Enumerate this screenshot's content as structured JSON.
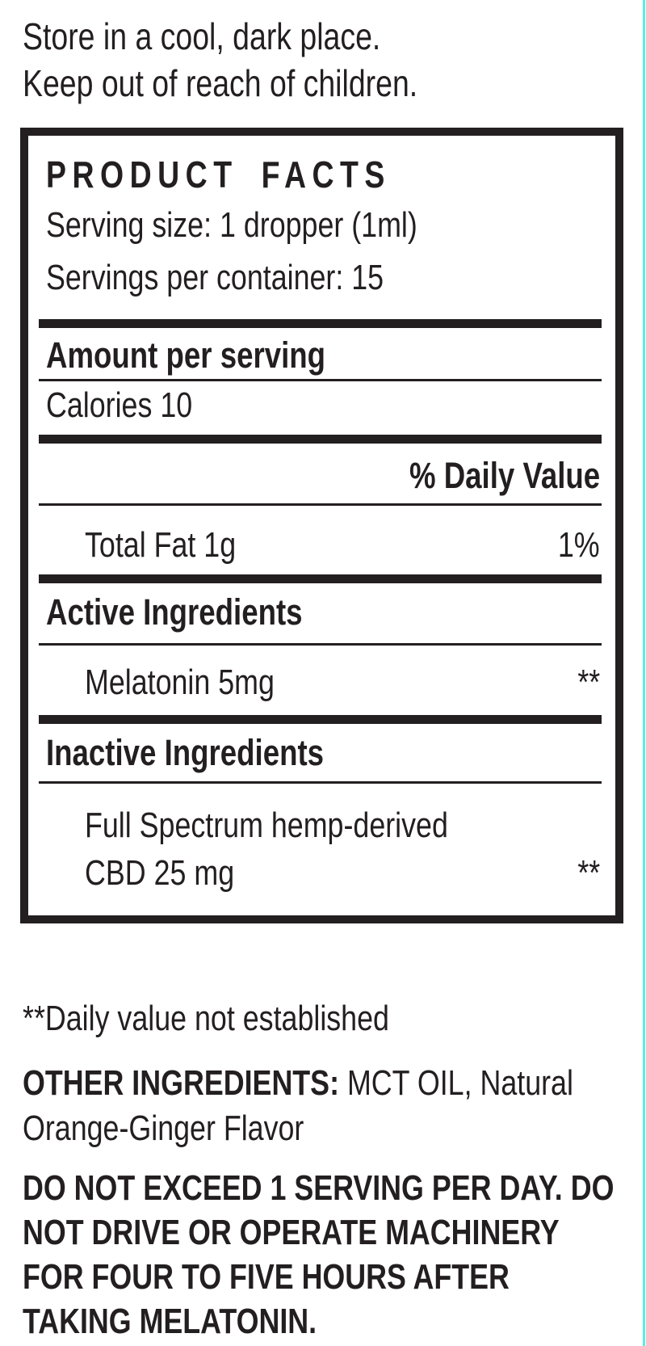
{
  "page": {
    "background_color": "#ffffff",
    "text_color": "#231f20",
    "edge_line_color": "#55efe2"
  },
  "storage_note": {
    "line1": "Store in a cool, dark place.",
    "line2": "Keep out of reach of children."
  },
  "facts_box": {
    "title": "PRODUCT FACTS",
    "serving_size": "Serving size: 1 dropper (1ml)",
    "servings_per_container": "Servings per container: 15",
    "amount_per_serving_header": "Amount per serving",
    "calories": "Calories 10",
    "daily_value_header": "% Daily Value",
    "total_fat": {
      "name": "Total Fat 1g",
      "daily_value": "1%"
    },
    "active_ingredients_header": "Active Ingredients",
    "melatonin": {
      "name": "Melatonin 5mg",
      "daily_value": "**"
    },
    "inactive_ingredients_header": "Inactive Ingredients",
    "cbd": {
      "line1": "Full Spectrum hemp-derived",
      "line2": "CBD 25 mg",
      "daily_value": "**"
    }
  },
  "footnotes": {
    "daily_value_note": "**Daily value not established",
    "other_ingredients_label": "OTHER INGREDIENTS:",
    "other_ingredients_value": " MCT OIL, Natural Orange-Ginger Flavor",
    "warning": "DO NOT EXCEED 1 SERVING PER DAY. DO NOT DRIVE OR OPERATE MACHINERY FOR FOUR TO FIVE HOURS AFTER TAKING MELATONIN."
  }
}
